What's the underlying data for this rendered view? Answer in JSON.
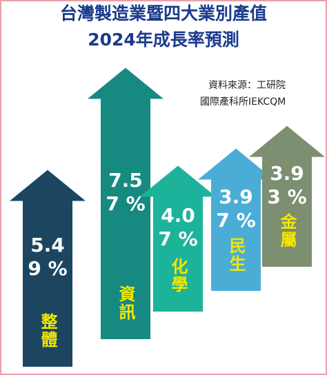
{
  "title": "台灣製造業暨四大業別產值",
  "subtitle": "2024年成長率預測",
  "source": [
    "資料來源：工研院",
    "國際產科所IEKCQM"
  ],
  "chart_data": {
    "type": "arrow",
    "categories": [
      "整體",
      "資訊",
      "化學",
      "民生",
      "金屬"
    ],
    "values": [
      5.49,
      7.57,
      4.07,
      3.97,
      3.93
    ],
    "value_labels": [
      "5.49 %",
      "7.57 %",
      "4.07 %",
      "3.97 %",
      "3.93 %"
    ],
    "colors": [
      "#1c4660",
      "#168a80",
      "#1db39a",
      "#4badd6",
      "#7c8f70"
    ]
  }
}
